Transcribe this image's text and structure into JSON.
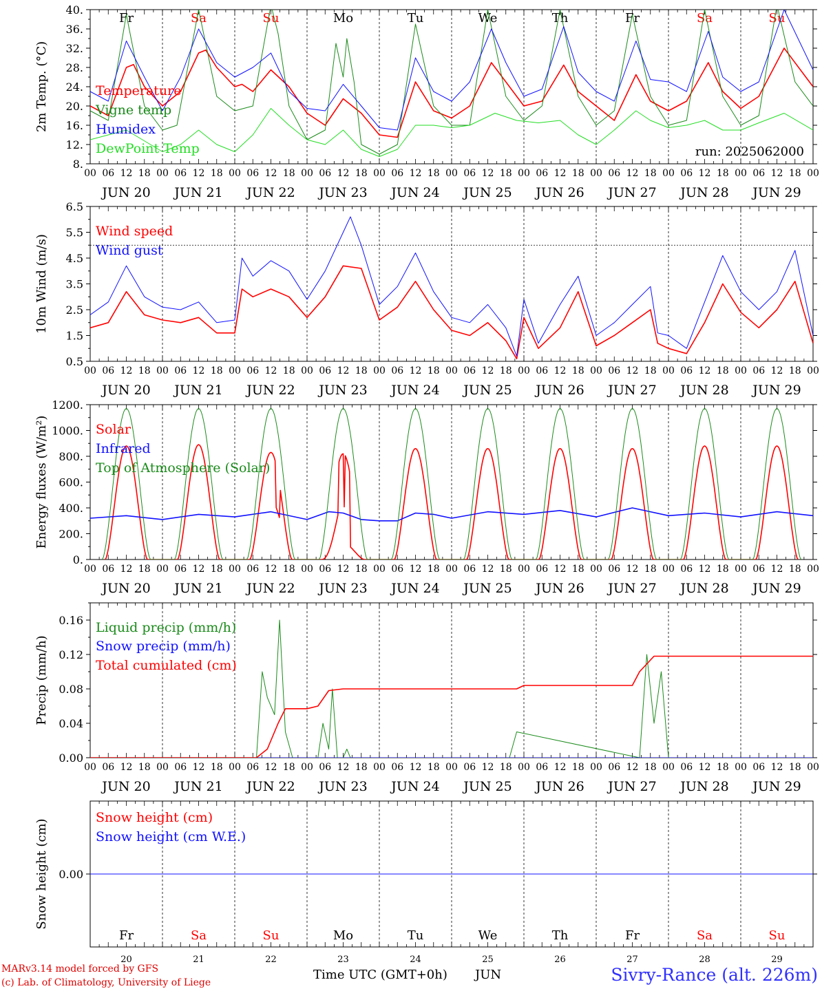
{
  "colors": {
    "red": "#ff0000",
    "green": "#1a8a1a",
    "blue": "#1010ff",
    "lightgreen": "#22dd22",
    "black": "#000000"
  },
  "days": [
    {
      "abbr": "Fr",
      "weekend": false,
      "label": "JUN 20",
      "num": "20"
    },
    {
      "abbr": "Sa",
      "weekend": true,
      "label": "JUN 21",
      "num": "21"
    },
    {
      "abbr": "Su",
      "weekend": true,
      "label": "JUN 22",
      "num": "22"
    },
    {
      "abbr": "Mo",
      "weekend": false,
      "label": "JUN 23",
      "num": "23"
    },
    {
      "abbr": "Tu",
      "weekend": false,
      "label": "JUN 24",
      "num": "24"
    },
    {
      "abbr": "We",
      "weekend": false,
      "label": "JUN 25",
      "num": "25"
    },
    {
      "abbr": "Th",
      "weekend": false,
      "label": "JUN 26",
      "num": "26"
    },
    {
      "abbr": "Fr",
      "weekend": false,
      "label": "JUN 27",
      "num": "27"
    },
    {
      "abbr": "Sa",
      "weekend": true,
      "label": "JUN 28",
      "num": "28"
    },
    {
      "abbr": "Su",
      "weekend": true,
      "label": "JUN 29",
      "num": "29"
    }
  ],
  "hour_labels": [
    "00",
    "06",
    "12",
    "18"
  ],
  "footer": {
    "model": "MARv3.14 model forced by GFS",
    "credit": "(c) Lab. of Climatology, University of Liege",
    "xlabel": "Time UTC (GMT+0h)",
    "month": "JUN",
    "station": "Sivry-Rance (alt. 226m)"
  },
  "chart_data": [
    {
      "type": "line",
      "ylabel": "2m Temp. (°C)",
      "ylim": [
        8,
        40
      ],
      "yticks": [
        "8.",
        "12.",
        "16.",
        "20.",
        "24.",
        "28.",
        "32.",
        "36.",
        "40."
      ],
      "annotation": "run: 2025062000",
      "x_unit": "day (0 = JUN 20 00 UTC)",
      "series": [
        {
          "name": "Temperature",
          "color": "#ff0000",
          "x": [
            0,
            0.25,
            0.5,
            0.6,
            0.75,
            1.0,
            1.25,
            1.5,
            1.6,
            1.75,
            2.0,
            2.1,
            2.25,
            2.5,
            2.75,
            3.0,
            3.25,
            3.5,
            3.75,
            4.0,
            4.25,
            4.5,
            4.75,
            5.0,
            5.25,
            5.55,
            5.75,
            6.0,
            6.25,
            6.55,
            6.75,
            7.0,
            7.25,
            7.55,
            7.75,
            8.0,
            8.25,
            8.55,
            8.75,
            9.0,
            9.25,
            9.6,
            10.0
          ],
          "y": [
            20,
            18,
            28,
            28.6,
            24,
            20,
            23,
            31,
            31.6,
            28,
            24,
            24.5,
            23,
            27.5,
            24,
            18.5,
            16,
            21.5,
            18.5,
            14,
            13.5,
            25,
            19,
            17.5,
            20,
            29,
            25,
            20,
            21,
            28.5,
            23,
            20,
            17,
            26.5,
            21,
            19,
            21,
            29,
            23,
            19.5,
            22,
            32,
            24
          ]
        },
        {
          "name": "Vigne temp",
          "color": "#1a8a1a",
          "x": [
            0,
            0.25,
            0.5,
            0.75,
            1.0,
            1.2,
            1.5,
            1.75,
            2.0,
            2.25,
            2.5,
            2.6,
            2.75,
            3.0,
            3.25,
            3.4,
            3.5,
            3.55,
            3.65,
            3.75,
            4.0,
            4.25,
            4.5,
            4.75,
            5.0,
            5.25,
            5.5,
            5.75,
            6.0,
            6.25,
            6.5,
            6.75,
            7.0,
            7.25,
            7.5,
            7.75,
            8.0,
            8.25,
            8.5,
            8.75,
            9.0,
            9.25,
            9.5,
            9.75,
            10.0
          ],
          "y": [
            19,
            17,
            39,
            20,
            15,
            16,
            40,
            22,
            19,
            20,
            41,
            35,
            20,
            13,
            15,
            33,
            26,
            34,
            25,
            12,
            10,
            12,
            37,
            20,
            16,
            16,
            40,
            22,
            17,
            20,
            40,
            22,
            16,
            19,
            39,
            22,
            16,
            17,
            40,
            22,
            16,
            18,
            41,
            25,
            20
          ]
        },
        {
          "name": "Humidex",
          "color": "#1010ff",
          "x": [
            0,
            0.25,
            0.5,
            0.75,
            1.0,
            1.25,
            1.5,
            1.75,
            2.0,
            2.25,
            2.5,
            2.75,
            3.0,
            3.25,
            3.5,
            3.75,
            4.0,
            4.25,
            4.5,
            4.75,
            5.0,
            5.25,
            5.55,
            5.75,
            6.0,
            6.25,
            6.55,
            6.75,
            7.0,
            7.25,
            7.55,
            7.75,
            8.0,
            8.25,
            8.55,
            8.75,
            9.0,
            9.25,
            9.6,
            10.0
          ],
          "y": [
            23,
            21,
            33.5,
            26,
            19,
            26,
            36,
            29,
            26,
            28,
            31,
            23,
            19.5,
            19,
            24.5,
            20,
            15.5,
            15,
            30,
            23,
            21,
            25,
            36,
            29,
            22,
            23.5,
            36.5,
            27,
            23,
            21,
            33.5,
            25.5,
            25,
            23,
            35.5,
            26,
            23,
            25,
            40,
            27.5
          ]
        },
        {
          "name": "DewPoint Temp",
          "color": "#22dd22",
          "x": [
            0,
            0.5,
            1.0,
            1.25,
            1.5,
            1.75,
            2.0,
            2.25,
            2.5,
            2.75,
            3.0,
            3.25,
            3.5,
            3.75,
            4.0,
            4.25,
            4.5,
            4.75,
            5.0,
            5.25,
            5.6,
            5.9,
            6.2,
            6.5,
            6.75,
            7.0,
            7.25,
            7.55,
            7.75,
            8.0,
            8.25,
            8.5,
            8.75,
            9.0,
            9.25,
            9.6,
            10.0
          ],
          "y": [
            13,
            15,
            10.5,
            12,
            15,
            12,
            10.5,
            14,
            19.5,
            16,
            13,
            12,
            15,
            11,
            9.5,
            11,
            16,
            16,
            15.5,
            16,
            18.5,
            17,
            16.5,
            17,
            14,
            12,
            15,
            19,
            17,
            15.5,
            16,
            17,
            15,
            15,
            16.5,
            18.5,
            15
          ]
        }
      ]
    },
    {
      "type": "line",
      "ylabel": "10m Wind (m/s)",
      "ylim": [
        0.5,
        6.5
      ],
      "yticks": [
        "0.5",
        "1.5",
        "2.5",
        "3.5",
        "4.5",
        "5.5",
        "6.5"
      ],
      "reference_line": 5.0,
      "series": [
        {
          "name": "Wind speed",
          "color": "#ff0000",
          "x": [
            0,
            0.25,
            0.5,
            0.75,
            1.0,
            1.25,
            1.5,
            1.75,
            2.0,
            2.1,
            2.25,
            2.5,
            2.75,
            3.0,
            3.25,
            3.5,
            3.75,
            4.0,
            4.25,
            4.5,
            4.75,
            5.0,
            5.25,
            5.5,
            5.75,
            5.9,
            6.0,
            6.2,
            6.5,
            6.75,
            7.0,
            7.25,
            7.5,
            7.75,
            7.85,
            8.0,
            8.25,
            8.5,
            8.75,
            9.0,
            9.25,
            9.5,
            9.75,
            10.0
          ],
          "y": [
            1.8,
            2.0,
            3.2,
            2.3,
            2.1,
            2.0,
            2.2,
            1.6,
            1.6,
            3.3,
            3.0,
            3.3,
            3.0,
            2.2,
            3.0,
            4.2,
            4.1,
            2.1,
            2.6,
            3.6,
            2.5,
            1.7,
            1.5,
            2.0,
            1.3,
            0.6,
            2.2,
            1.0,
            1.8,
            3.2,
            1.1,
            1.5,
            2.0,
            2.5,
            1.2,
            1.0,
            0.8,
            2.0,
            3.5,
            2.4,
            1.8,
            2.5,
            3.6,
            1.2
          ]
        },
        {
          "name": "Wind gust",
          "color": "#1010ff",
          "x": [
            0,
            0.25,
            0.5,
            0.75,
            1.0,
            1.25,
            1.5,
            1.75,
            2.0,
            2.1,
            2.25,
            2.5,
            2.75,
            3.0,
            3.25,
            3.5,
            3.6,
            3.75,
            4.0,
            4.25,
            4.5,
            4.75,
            5.0,
            5.25,
            5.5,
            5.75,
            5.9,
            6.0,
            6.2,
            6.5,
            6.75,
            7.0,
            7.25,
            7.5,
            7.75,
            7.85,
            8.0,
            8.25,
            8.5,
            8.75,
            9.0,
            9.25,
            9.5,
            9.75,
            10.0
          ],
          "y": [
            2.3,
            2.8,
            4.2,
            3.0,
            2.6,
            2.5,
            2.8,
            2.0,
            2.1,
            4.5,
            3.8,
            4.4,
            4.0,
            2.9,
            4.0,
            5.5,
            6.1,
            5.0,
            2.7,
            3.4,
            4.7,
            3.2,
            2.2,
            2.0,
            2.7,
            1.8,
            0.7,
            2.9,
            1.2,
            2.7,
            3.8,
            1.5,
            2.0,
            2.7,
            3.4,
            1.6,
            1.5,
            1.0,
            2.8,
            4.6,
            3.2,
            2.5,
            3.2,
            4.8,
            1.5
          ]
        }
      ]
    },
    {
      "type": "line",
      "ylabel": "Energy fluxes (W/m²)",
      "ylim": [
        0,
        1200
      ],
      "yticks": [
        "0.",
        "200.",
        "400.",
        "600.",
        "800.",
        "1000.",
        "1200."
      ],
      "series": [
        {
          "name": "Solar",
          "color": "#ff0000",
          "daily_peak": [
            880,
            890,
            830,
            820,
            860,
            860,
            860,
            860,
            880,
            880
          ],
          "note": "diurnal cycle 04-20 UTC; clouded dips on JUN 22 and JUN 23"
        },
        {
          "name": "Infrared",
          "color": "#1010ff",
          "x": [
            0,
            0.5,
            1.0,
            1.5,
            2.0,
            2.5,
            3.0,
            3.3,
            3.5,
            3.75,
            4.0,
            4.25,
            4.5,
            4.75,
            5.0,
            5.5,
            6.0,
            6.5,
            7.0,
            7.5,
            8.0,
            8.5,
            9.0,
            9.5,
            10.0
          ],
          "y": [
            320,
            340,
            310,
            350,
            330,
            370,
            310,
            370,
            360,
            310,
            300,
            300,
            360,
            350,
            320,
            370,
            350,
            380,
            330,
            400,
            340,
            360,
            330,
            370,
            340
          ]
        },
        {
          "name": "Top of Atmosphere (Solar)",
          "color": "#1a8a1a",
          "daily_peak": [
            1170,
            1170,
            1170,
            1170,
            1170,
            1170,
            1170,
            1170,
            1170,
            1170
          ]
        }
      ]
    },
    {
      "type": "line",
      "ylabel": "Precip (mm/h)",
      "ylim": [
        0,
        0.18
      ],
      "yticks": [
        "0.00",
        "0.04",
        "0.08",
        "0.12",
        "0.16"
      ],
      "series": [
        {
          "name": "Liquid precip (mm/h)",
          "color": "#1a8a1a",
          "x": [
            0,
            2.3,
            2.38,
            2.45,
            2.55,
            2.62,
            2.7,
            2.8,
            3.0,
            3.15,
            3.22,
            3.3,
            3.35,
            3.42,
            3.5,
            3.55,
            3.6,
            3.7,
            5.8,
            5.9,
            7.6,
            7.7,
            7.8,
            7.9,
            8.0,
            8.1,
            10.0
          ],
          "y": [
            0,
            0,
            0.1,
            0.07,
            0.05,
            0.16,
            0.03,
            0,
            0,
            0,
            0.04,
            0.01,
            0.08,
            0,
            0,
            0.01,
            0,
            0,
            0,
            0.03,
            0,
            0.12,
            0.04,
            0.1,
            0,
            0,
            0
          ]
        },
        {
          "name": "Snow precip (mm/h)",
          "color": "#1010ff",
          "x": [
            0,
            10
          ],
          "y": [
            0,
            0
          ]
        },
        {
          "name": "Total cumulated (cm)",
          "color": "#ff0000",
          "x": [
            0,
            2.3,
            2.45,
            2.6,
            2.7,
            3.0,
            3.15,
            3.3,
            3.5,
            5.9,
            6.0,
            7.5,
            7.6,
            7.8,
            8.0,
            10.0
          ],
          "y": [
            0,
            0,
            0.01,
            0.04,
            0.057,
            0.057,
            0.06,
            0.078,
            0.08,
            0.08,
            0.084,
            0.084,
            0.1,
            0.118,
            0.118,
            0.118
          ]
        }
      ]
    },
    {
      "type": "line",
      "ylabel": "Snow height (cm)",
      "ylim": [
        -0.1,
        0.1
      ],
      "yticks": [
        "0.00"
      ],
      "series": [
        {
          "name": "Snow height (cm)",
          "color": "#ff0000",
          "x": [
            0,
            10
          ],
          "y": [
            0,
            0
          ]
        },
        {
          "name": "Snow height (cm W.E.)",
          "color": "#1010ff",
          "x": [
            0,
            10
          ],
          "y": [
            0,
            0
          ]
        }
      ]
    }
  ]
}
